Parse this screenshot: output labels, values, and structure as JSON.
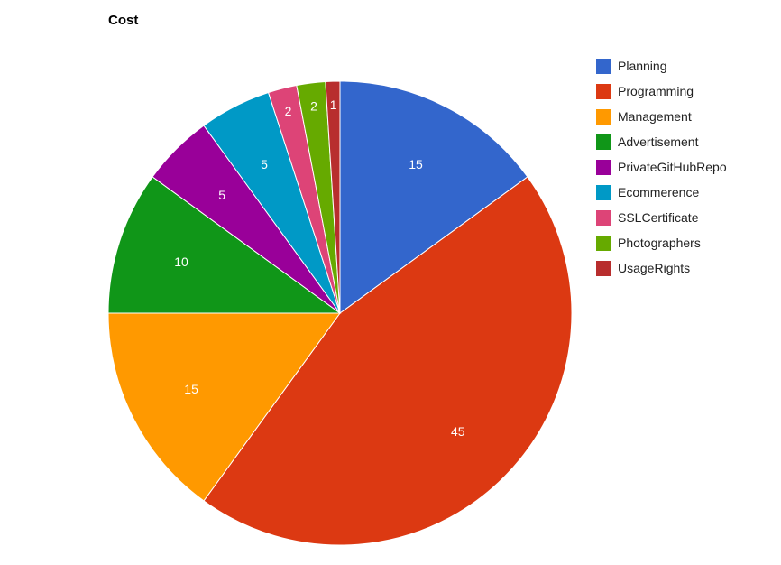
{
  "chart_data": {
    "type": "pie",
    "title": "Cost",
    "legend_position": "right",
    "slices": [
      {
        "label": "Planning",
        "value": 15,
        "color": "#3366cc"
      },
      {
        "label": "Programming",
        "value": 45,
        "color": "#dc3912"
      },
      {
        "label": "Management",
        "value": 15,
        "color": "#ff9900"
      },
      {
        "label": "Advertisement",
        "value": 10,
        "color": "#109618"
      },
      {
        "label": "PrivateGitHubRepo",
        "value": 5,
        "color": "#990099"
      },
      {
        "label": "Ecommerence",
        "value": 5,
        "color": "#0099c6"
      },
      {
        "label": "SSLCertificate",
        "value": 2,
        "color": "#dd4477"
      },
      {
        "label": "Photographers",
        "value": 2,
        "color": "#66aa00"
      },
      {
        "label": "UsageRights",
        "value": 1,
        "color": "#b82e2e"
      }
    ]
  }
}
